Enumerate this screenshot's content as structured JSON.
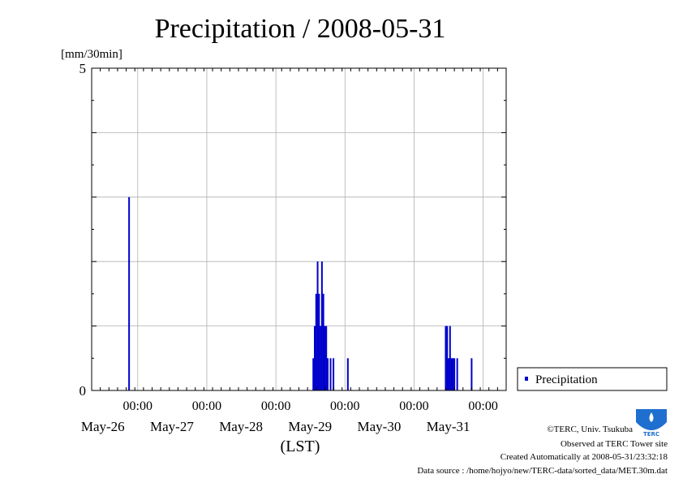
{
  "title": "Precipitation / 2008-05-31",
  "colors": {
    "series": "#0000cc",
    "grid": "#b0b0b0",
    "axis": "#000000"
  },
  "chart_data": {
    "type": "bar",
    "title": "Precipitation / 2008-05-31",
    "ylabel": "[mm/30min]",
    "xlabel": "(LST)",
    "ylim": [
      0,
      5
    ],
    "yticks": [
      0,
      5
    ],
    "y_gridlines": [
      1,
      2,
      3,
      4
    ],
    "xlim": [
      "2008-05-25T08:00",
      "2008-05-31T08:00"
    ],
    "x_major_ticks": [
      {
        "time": "2008-05-26T00:00",
        "time_label": "00:00",
        "date_label": "May-26"
      },
      {
        "time": "2008-05-27T00:00",
        "time_label": "00:00",
        "date_label": "May-27"
      },
      {
        "time": "2008-05-28T00:00",
        "time_label": "00:00",
        "date_label": "May-28"
      },
      {
        "time": "2008-05-29T00:00",
        "time_label": "00:00",
        "date_label": "May-29"
      },
      {
        "time": "2008-05-30T00:00",
        "time_label": "00:00",
        "date_label": "May-30"
      },
      {
        "time": "2008-05-31T00:00",
        "time_label": "00:00",
        "date_label": "May-31"
      }
    ],
    "grid": true,
    "legend_position": "right",
    "series": [
      {
        "name": "Precipitation",
        "color": "#0000cc",
        "points": [
          {
            "x": "2008-05-25T21:00",
            "y": 3.0
          },
          {
            "x": "2008-05-28T13:00",
            "y": 0.5
          },
          {
            "x": "2008-05-28T13:30",
            "y": 1.0
          },
          {
            "x": "2008-05-28T14:00",
            "y": 1.5
          },
          {
            "x": "2008-05-28T14:30",
            "y": 2.0
          },
          {
            "x": "2008-05-28T15:00",
            "y": 1.5
          },
          {
            "x": "2008-05-28T15:30",
            "y": 1.0
          },
          {
            "x": "2008-05-28T16:00",
            "y": 2.0
          },
          {
            "x": "2008-05-28T16:30",
            "y": 1.5
          },
          {
            "x": "2008-05-28T17:00",
            "y": 1.0
          },
          {
            "x": "2008-05-28T17:30",
            "y": 1.0
          },
          {
            "x": "2008-05-28T18:00",
            "y": 0.5
          },
          {
            "x": "2008-05-28T19:00",
            "y": 0.5
          },
          {
            "x": "2008-05-28T20:00",
            "y": 0.5
          },
          {
            "x": "2008-05-29T01:00",
            "y": 0.5
          },
          {
            "x": "2008-05-30T11:00",
            "y": 1.0
          },
          {
            "x": "2008-05-30T11:30",
            "y": 1.0
          },
          {
            "x": "2008-05-30T12:00",
            "y": 0.5
          },
          {
            "x": "2008-05-30T12:30",
            "y": 1.0
          },
          {
            "x": "2008-05-30T13:00",
            "y": 0.5
          },
          {
            "x": "2008-05-30T13:30",
            "y": 0.5
          },
          {
            "x": "2008-05-30T14:00",
            "y": 0.5
          },
          {
            "x": "2008-05-30T15:00",
            "y": 0.5
          },
          {
            "x": "2008-05-30T20:00",
            "y": 0.5
          }
        ]
      }
    ]
  },
  "legend": {
    "label": "Precipitation"
  },
  "credits": {
    "copyright": "©TERC, Univ. Tsukuba",
    "observed": "Observed at TERC Tower site",
    "created": "Created Automatically at 2008-05-31/23:32:18",
    "source": "Data source : /home/hojyo/new/TERC-data/sorted_data/MET.30m.dat",
    "logo_text": "TERC"
  }
}
